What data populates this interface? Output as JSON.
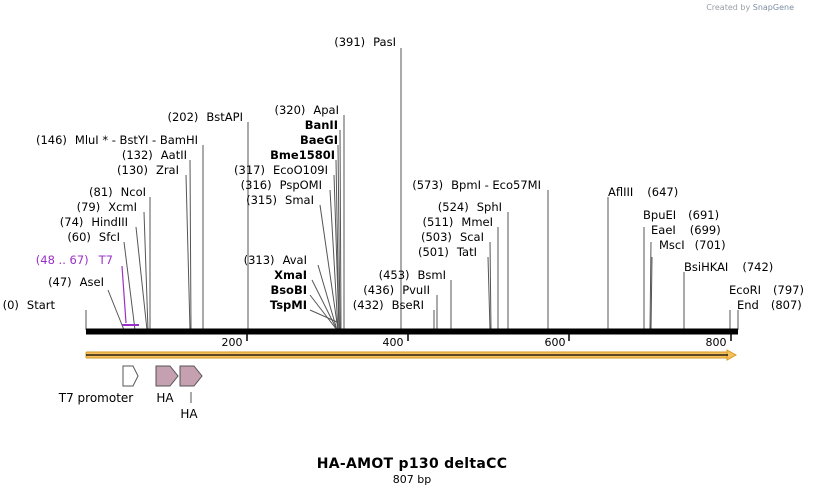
{
  "credit": {
    "created_by": "Created by",
    "brand": "SnapGene"
  },
  "plasmid": {
    "name": "HA-AMOT p130 deltaCC",
    "length_label": "807 bp",
    "length": 807
  },
  "ends": {
    "start_label": "Start",
    "start_pos": "(0)",
    "end_label": "End",
    "end_pos": "(807)"
  },
  "ticks": [
    "200",
    "400",
    "600",
    "800"
  ],
  "primer": {
    "label": "T7",
    "range": "(48 .. 67)",
    "color": "#9b30c8"
  },
  "enzymes": [
    {
      "name": "AseI",
      "pos": "(47)"
    },
    {
      "name": "SfcI",
      "pos": "(60)"
    },
    {
      "name": "HindIII",
      "pos": "(74)"
    },
    {
      "name": "XcmI",
      "pos": "(79)"
    },
    {
      "name": "NcoI",
      "pos": "(81)"
    },
    {
      "name": "ZraI",
      "pos": "(130)"
    },
    {
      "name": "AatII",
      "pos": "(132)"
    },
    {
      "name": "MluI * - BstYI  - BamHI",
      "pos": "(146)"
    },
    {
      "name": "BstAPI",
      "pos": "(202)"
    },
    {
      "name": "TspMI",
      "pos": ""
    },
    {
      "name": "BsoBI",
      "pos": ""
    },
    {
      "name": "XmaI",
      "pos": ""
    },
    {
      "name": "AvaI",
      "pos": "(313)"
    },
    {
      "name": "SmaI",
      "pos": "(315)"
    },
    {
      "name": "PspOMI",
      "pos": "(316)"
    },
    {
      "name": "EcoO109I",
      "pos": "(317)"
    },
    {
      "name": "Bme1580I",
      "pos": ""
    },
    {
      "name": "BaeGI",
      "pos": ""
    },
    {
      "name": "BanII",
      "pos": ""
    },
    {
      "name": "ApaI",
      "pos": "(320)"
    },
    {
      "name": "PasI",
      "pos": "(391)"
    },
    {
      "name": "BseRI",
      "pos": "(432)"
    },
    {
      "name": "PvuII",
      "pos": "(436)"
    },
    {
      "name": "BsmI",
      "pos": "(453)"
    },
    {
      "name": "TatI",
      "pos": "(501)"
    },
    {
      "name": "ScaI",
      "pos": "(503)"
    },
    {
      "name": "MmeI",
      "pos": "(511)"
    },
    {
      "name": "SphI",
      "pos": "(524)"
    },
    {
      "name": "BpmI  - Eco57MI",
      "pos": "(573)"
    },
    {
      "name": "AflIII",
      "pos": "(647)"
    },
    {
      "name": "BpuEI",
      "pos": "(691)"
    },
    {
      "name": "EaeI",
      "pos": "(699)"
    },
    {
      "name": "MscI",
      "pos": "(701)"
    },
    {
      "name": "BsiHKAI",
      "pos": "(742)"
    },
    {
      "name": "EcoRI",
      "pos": "(797)"
    }
  ],
  "features": [
    {
      "label": "T7 promoter",
      "color": "#ffffff"
    },
    {
      "label": "HA",
      "color": "#c4a0b0"
    },
    {
      "label": "HA",
      "color": "#c4a0b0"
    }
  ],
  "colors": {
    "orf_fill": "#f5c060",
    "orf_stroke": "#d69a20",
    "line": "#000000"
  }
}
